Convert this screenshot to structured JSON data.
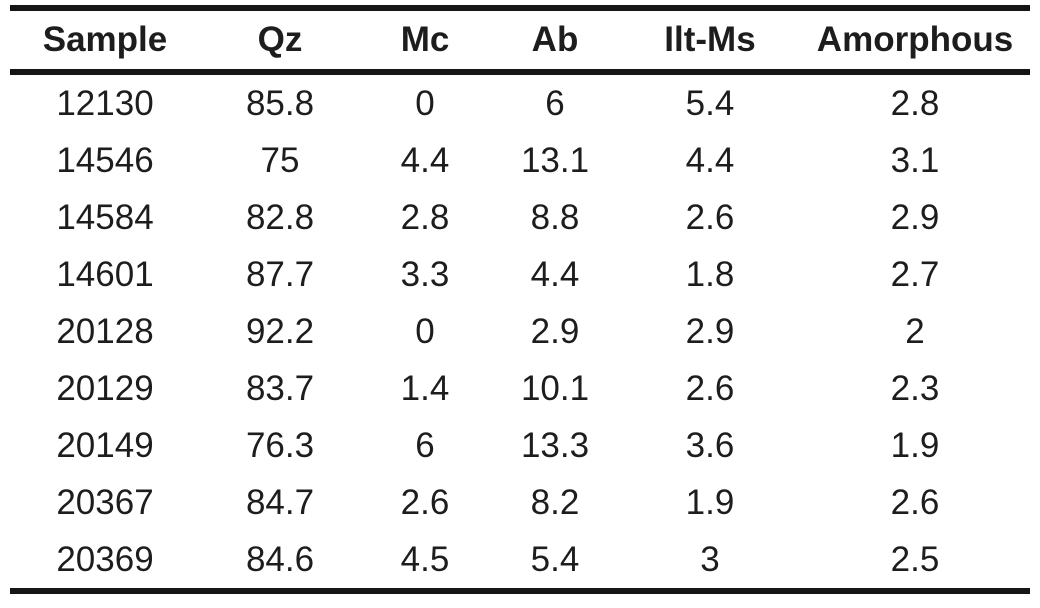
{
  "table": {
    "columns": [
      "Sample",
      "Qz",
      "Mc",
      "Ab",
      "Ilt-Ms",
      "Amorphous"
    ],
    "rows": [
      [
        "12130",
        "85.8",
        "0",
        "6",
        "5.4",
        "2.8"
      ],
      [
        "14546",
        "75",
        "4.4",
        "13.1",
        "4.4",
        "3.1"
      ],
      [
        "14584",
        "82.8",
        "2.8",
        "8.8",
        "2.6",
        "2.9"
      ],
      [
        "14601",
        "87.7",
        "3.3",
        "4.4",
        "1.8",
        "2.7"
      ],
      [
        "20128",
        "92.2",
        "0",
        "2.9",
        "2.9",
        "2"
      ],
      [
        "20129",
        "83.7",
        "1.4",
        "10.1",
        "2.6",
        "2.3"
      ],
      [
        "20149",
        "76.3",
        "6",
        "13.3",
        "3.6",
        "1.9"
      ],
      [
        "20367",
        "84.7",
        "2.6",
        "8.2",
        "1.9",
        "2.6"
      ],
      [
        "20369",
        "84.6",
        "4.5",
        "5.4",
        "3",
        "2.5"
      ]
    ]
  },
  "colors": {
    "text": "#1d1d1d",
    "rule": "#161616",
    "background": "#ffffff"
  }
}
